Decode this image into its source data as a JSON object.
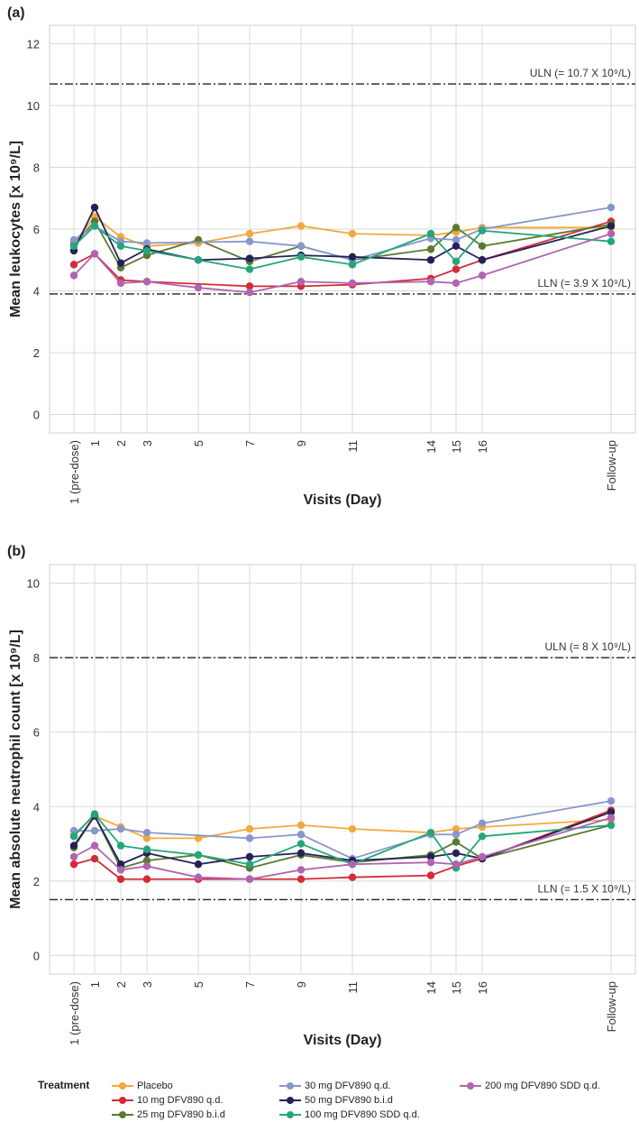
{
  "panels": [
    {
      "label": "(a)",
      "ylabel": "Mean leukocytes [x 10⁹/L]",
      "xlabel": "Visits (Day)",
      "yticks": [
        "0",
        "2",
        "4",
        "6",
        "8",
        "10",
        "12"
      ],
      "ylim": [
        -0.6,
        12.6
      ],
      "ref_lines": [
        {
          "value": 10.7,
          "label": "ULN (= 10.7 X 10⁹/L)"
        },
        {
          "value": 3.9,
          "label": "LLN (= 3.9 X 10⁹/L)"
        }
      ]
    },
    {
      "label": "(b)",
      "ylabel": "Mean absolute neutrophil count [x 10⁹/L]",
      "xlabel": "Visits (Day)",
      "yticks": [
        "0",
        "2",
        "4",
        "6",
        "8",
        "10"
      ],
      "ylim": [
        -0.5,
        10.5
      ],
      "ref_lines": [
        {
          "value": 8,
          "label": "ULN (= 8 X 10⁹/L)"
        },
        {
          "value": 1.5,
          "label": "LLN (= 1.5 X 10⁹/L)"
        }
      ]
    }
  ],
  "x_categories": [
    "1 (pre-dose)",
    "1",
    "2",
    "3",
    "5",
    "7",
    "9",
    "11",
    "14",
    "15",
    "16",
    "Follow-up"
  ],
  "legend": {
    "title": "Treatment",
    "items": [
      {
        "label": "Placebo",
        "color": "#F2A93B"
      },
      {
        "label": "10 mg DFV890 q.d.",
        "color": "#D42A3A"
      },
      {
        "label": "25 mg DFV890 b.i.d",
        "color": "#5A7A32"
      },
      {
        "label": "30 mg DFV890 q.d.",
        "color": "#8797CC"
      },
      {
        "label": "50 mg DFV890 b.i.d",
        "color": "#232258"
      },
      {
        "label": "100 mg DFV890 SDD q.d.",
        "color": "#25A67A"
      },
      {
        "label": "200 mg DFV890 SDD q.d.",
        "color": "#B264B0"
      }
    ]
  },
  "chart_data": [
    {
      "type": "line",
      "title": "(a)",
      "xlabel": "Visits (Day)",
      "ylabel": "Mean leukocytes [x 10⁹/L]",
      "categories": [
        "1 (pre-dose)",
        "1",
        "2",
        "3",
        "5",
        "7",
        "9",
        "11",
        "14",
        "15",
        "16",
        "Follow-up"
      ],
      "ylim": [
        -0.6,
        12.6
      ],
      "series": [
        {
          "name": "Placebo",
          "x": [
            0,
            1,
            2,
            3,
            5,
            7,
            9,
            11,
            14,
            15,
            16,
            21
          ],
          "values": [
            5.55,
            6.4,
            5.75,
            5.45,
            5.55,
            5.85,
            6.1,
            5.85,
            5.8,
            5.9,
            6.05,
            6.05
          ]
        },
        {
          "name": "10 mg DFV890 q.d.",
          "x": [
            0,
            1,
            2,
            3,
            7,
            9,
            11,
            14,
            15,
            16,
            21
          ],
          "values": [
            4.85,
            5.2,
            4.35,
            4.3,
            4.15,
            4.15,
            4.2,
            4.4,
            4.7,
            5.0,
            6.25
          ]
        },
        {
          "name": "25 mg DFV890 b.i.d",
          "x": [
            0,
            1,
            2,
            3,
            5,
            7,
            9,
            11,
            14,
            15,
            16,
            21
          ],
          "values": [
            5.5,
            6.25,
            4.75,
            5.15,
            5.65,
            4.95,
            5.45,
            5.0,
            5.35,
            6.05,
            5.45,
            6.15
          ]
        },
        {
          "name": "30 mg DFV890 q.d.",
          "x": [
            0,
            1,
            2,
            3,
            7,
            9,
            11,
            14,
            15,
            16,
            21
          ],
          "values": [
            5.65,
            6.1,
            5.6,
            5.55,
            5.6,
            5.45,
            5.0,
            5.7,
            5.65,
            6.0,
            6.7
          ]
        },
        {
          "name": "50 mg DFV890 b.i.d",
          "x": [
            0,
            1,
            2,
            3,
            5,
            7,
            9,
            11,
            14,
            15,
            16,
            21
          ],
          "values": [
            5.3,
            6.7,
            4.9,
            5.35,
            5.0,
            5.05,
            5.15,
            5.1,
            5.0,
            5.45,
            5.0,
            6.1
          ]
        },
        {
          "name": "100 mg DFV890 SDD q.d.",
          "x": [
            0,
            1,
            2,
            3,
            5,
            7,
            9,
            11,
            14,
            15,
            16,
            21
          ],
          "values": [
            5.45,
            6.1,
            5.45,
            5.3,
            5.0,
            4.7,
            5.1,
            4.85,
            5.85,
            4.95,
            5.95,
            5.6
          ]
        },
        {
          "name": "200 mg DFV890 SDD q.d.",
          "x": [
            0,
            1,
            2,
            3,
            5,
            7,
            9,
            11,
            14,
            15,
            16,
            21
          ],
          "values": [
            4.5,
            5.2,
            4.25,
            4.3,
            4.1,
            3.95,
            4.3,
            4.25,
            4.3,
            4.25,
            4.5,
            5.85
          ]
        }
      ]
    },
    {
      "type": "line",
      "title": "(b)",
      "xlabel": "Visits (Day)",
      "ylabel": "Mean absolute neutrophil count [x 10⁹/L]",
      "categories": [
        "1 (pre-dose)",
        "1",
        "2",
        "3",
        "5",
        "7",
        "9",
        "11",
        "14",
        "15",
        "16",
        "Follow-up"
      ],
      "ylim": [
        -0.5,
        10.5
      ],
      "series": [
        {
          "name": "Placebo",
          "x": [
            0,
            1,
            2,
            3,
            5,
            7,
            9,
            11,
            14,
            15,
            16,
            21
          ],
          "values": [
            3.25,
            3.75,
            3.45,
            3.15,
            3.15,
            3.4,
            3.5,
            3.4,
            3.3,
            3.4,
            3.45,
            3.65
          ]
        },
        {
          "name": "10 mg DFV890 q.d.",
          "x": [
            0,
            1,
            2,
            3,
            5,
            7,
            9,
            11,
            14,
            15,
            16,
            21
          ],
          "values": [
            2.45,
            2.6,
            2.05,
            2.05,
            2.05,
            2.05,
            2.05,
            2.1,
            2.15,
            2.4,
            2.6,
            3.9
          ]
        },
        {
          "name": "25 mg DFV890 b.i.d",
          "x": [
            0,
            1,
            2,
            3,
            5,
            7,
            9,
            11,
            14,
            15,
            16,
            21
          ],
          "values": [
            2.9,
            3.75,
            2.35,
            2.55,
            2.7,
            2.35,
            2.7,
            2.5,
            2.7,
            3.05,
            2.6,
            3.5
          ]
        },
        {
          "name": "30 mg DFV890 q.d.",
          "x": [
            0,
            1,
            2,
            3,
            7,
            9,
            11,
            14,
            15,
            16,
            21
          ],
          "values": [
            3.35,
            3.35,
            3.4,
            3.3,
            3.15,
            3.25,
            2.6,
            3.25,
            3.25,
            3.55,
            4.15
          ]
        },
        {
          "name": "50 mg DFV890 b.i.d",
          "x": [
            0,
            1,
            2,
            3,
            5,
            7,
            9,
            11,
            14,
            15,
            16,
            21
          ],
          "values": [
            2.95,
            3.75,
            2.45,
            2.75,
            2.45,
            2.65,
            2.75,
            2.55,
            2.65,
            2.75,
            2.6,
            3.85
          ]
        },
        {
          "name": "100 mg DFV890 SDD q.d.",
          "x": [
            0,
            1,
            2,
            3,
            5,
            7,
            9,
            11,
            14,
            15,
            16,
            21
          ],
          "values": [
            3.2,
            3.8,
            2.95,
            2.85,
            2.7,
            2.45,
            3.0,
            2.45,
            3.3,
            2.35,
            3.2,
            3.5
          ]
        },
        {
          "name": "200 mg DFV890 SDD q.d.",
          "x": [
            0,
            1,
            2,
            3,
            5,
            7,
            9,
            11,
            14,
            15,
            16,
            21
          ],
          "values": [
            2.65,
            2.95,
            2.3,
            2.4,
            2.1,
            2.05,
            2.3,
            2.45,
            2.5,
            2.45,
            2.65,
            3.7
          ]
        }
      ]
    }
  ]
}
